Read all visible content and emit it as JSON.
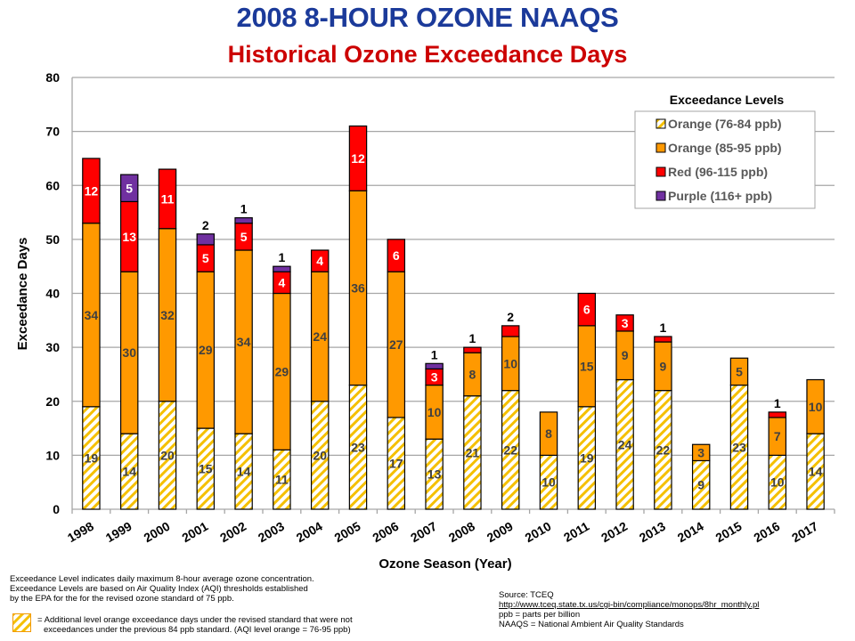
{
  "header": {
    "title": "2008 8-HOUR OZONE NAAQS",
    "subtitle": "Historical Ozone Exceedance Days"
  },
  "colors": {
    "orange_hatch": "#f5c000",
    "orange": "#ff9900",
    "red": "#ff0000",
    "purple": "#7030a0",
    "grid": "#a6a6a6",
    "value_label_dark": "#404040",
    "value_label_light": "#ffffff"
  },
  "chart_data": {
    "type": "bar",
    "stacked": true,
    "title": "2008 8-HOUR OZONE NAAQS — Historical Ozone Exceedance Days",
    "xlabel": "Ozone Season (Year)",
    "ylabel": "Exceedance Days",
    "ylim": [
      0,
      80
    ],
    "yticks": [
      0,
      10,
      20,
      30,
      40,
      50,
      60,
      70,
      80
    ],
    "grid": true,
    "legend_title": "Exceedance Levels",
    "legend_position": "top-right",
    "categories": [
      "1998",
      "1999",
      "2000",
      "2001",
      "2002",
      "2003",
      "2004",
      "2005",
      "2006",
      "2007",
      "2008",
      "2009",
      "2010",
      "2011",
      "2012",
      "2013",
      "2014",
      "2015",
      "2016",
      "2017"
    ],
    "series": [
      {
        "name": "Orange (76-84 ppb)",
        "key": "orange_hatch",
        "values": [
          19,
          14,
          20,
          15,
          14,
          11,
          20,
          23,
          17,
          13,
          21,
          22,
          10,
          19,
          24,
          22,
          9,
          23,
          10,
          14
        ]
      },
      {
        "name": "Orange (85-95 ppb)",
        "key": "orange",
        "values": [
          34,
          30,
          32,
          29,
          34,
          29,
          24,
          36,
          27,
          10,
          8,
          10,
          8,
          15,
          9,
          9,
          3,
          5,
          7,
          10
        ]
      },
      {
        "name": "Red (96-115 ppb)",
        "key": "red",
        "values": [
          12,
          13,
          11,
          5,
          5,
          4,
          4,
          12,
          6,
          3,
          1,
          2,
          0,
          6,
          3,
          1,
          0,
          0,
          1,
          0
        ]
      },
      {
        "name": "Purple (116+ ppb)",
        "key": "purple",
        "values": [
          0,
          5,
          0,
          2,
          1,
          1,
          0,
          0,
          0,
          1,
          0,
          0,
          0,
          0,
          0,
          0,
          0,
          0,
          0,
          0
        ]
      }
    ]
  },
  "footnotes": {
    "definition_lines": [
      "Exceedance Level indicates daily maximum  8-hour average ozone concentration.",
      "Exceedance Levels are based on Air Quality Index  (AQI) thresholds established",
      "by the EPA  for the for the revised ozone standard of 75 ppb."
    ],
    "hatch_note_lines": [
      "= Additional level orange exceedance days under the revised standard that were not",
      "exceedances under the previous 84 ppb standard.  (AQI level orange = 76-95 ppb)"
    ],
    "source_label": "Source:  TCEQ",
    "source_url_text": "http://www.tceq.state.tx.us/cgi-bin/compliance/monops/8hr_monthly.pl",
    "ppb_note": "ppb = parts per billion",
    "naaqs_note": "NAAQS = National Ambient Air Quality Standards"
  }
}
